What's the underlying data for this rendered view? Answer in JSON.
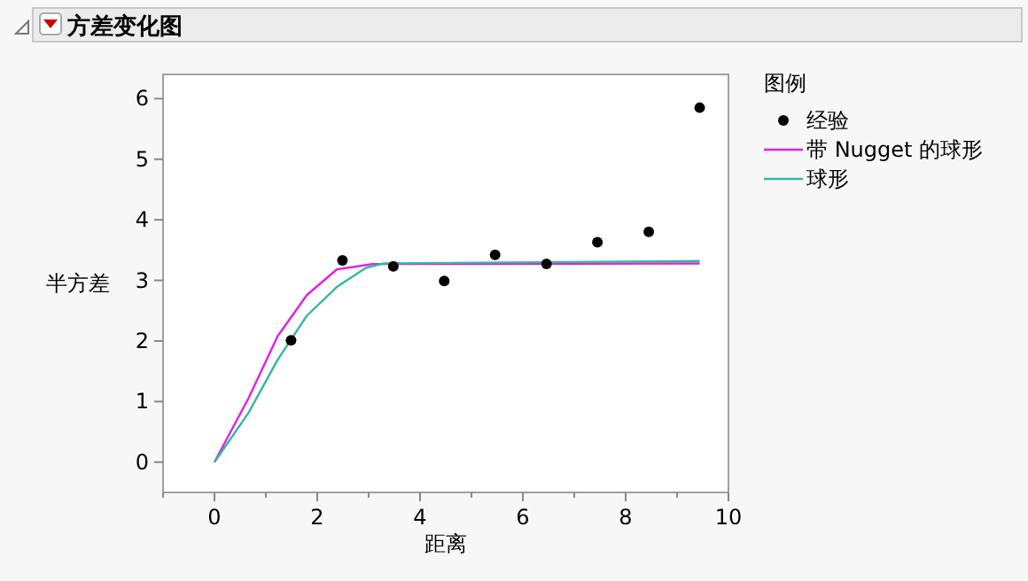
{
  "chart_data": {
    "type": "scatter",
    "title": "方差变化图",
    "xlabel": "距离",
    "ylabel": "半方差",
    "legend_title": "图例",
    "legend": "right",
    "grid": false,
    "xlim": [
      -1,
      10
    ],
    "xticks": [
      {
        "value": -1,
        "label": null
      },
      0,
      {
        "value": 1,
        "label": null
      },
      2,
      {
        "value": 3,
        "label": null
      },
      4,
      {
        "value": 5,
        "label": null
      },
      6,
      {
        "value": 7,
        "label": null
      },
      8,
      {
        "value": 9,
        "label": null
      },
      10
    ],
    "ylim": [
      -0.5,
      6.4
    ],
    "yticks": [
      0,
      1,
      2,
      3,
      4,
      5,
      6
    ],
    "series": [
      {
        "name": "经验",
        "marker": "circle",
        "color": "#000000",
        "x": [
          1.49,
          2.49,
          3.48,
          4.47,
          5.46,
          6.46,
          7.45,
          8.45,
          9.44
        ],
        "values": [
          2.01,
          3.33,
          3.23,
          2.99,
          3.42,
          3.27,
          3.63,
          3.8,
          5.85
        ]
      },
      {
        "name": "带 Nugget 的球形",
        "type": "line",
        "marker": "none",
        "color": "#e020e0",
        "x": [
          0,
          0.66,
          1.23,
          1.8,
          2.38,
          3.07,
          9.44
        ],
        "values": [
          0,
          1.05,
          2.08,
          2.76,
          3.18,
          3.27,
          3.28
        ]
      },
      {
        "name": "球形",
        "type": "line",
        "marker": "none",
        "color": "#30b8a0",
        "x": [
          0,
          0.66,
          1.23,
          1.8,
          2.38,
          2.95,
          3.3,
          9.44
        ],
        "values": [
          0,
          0.81,
          1.69,
          2.42,
          2.89,
          3.21,
          3.28,
          3.32
        ]
      }
    ]
  }
}
